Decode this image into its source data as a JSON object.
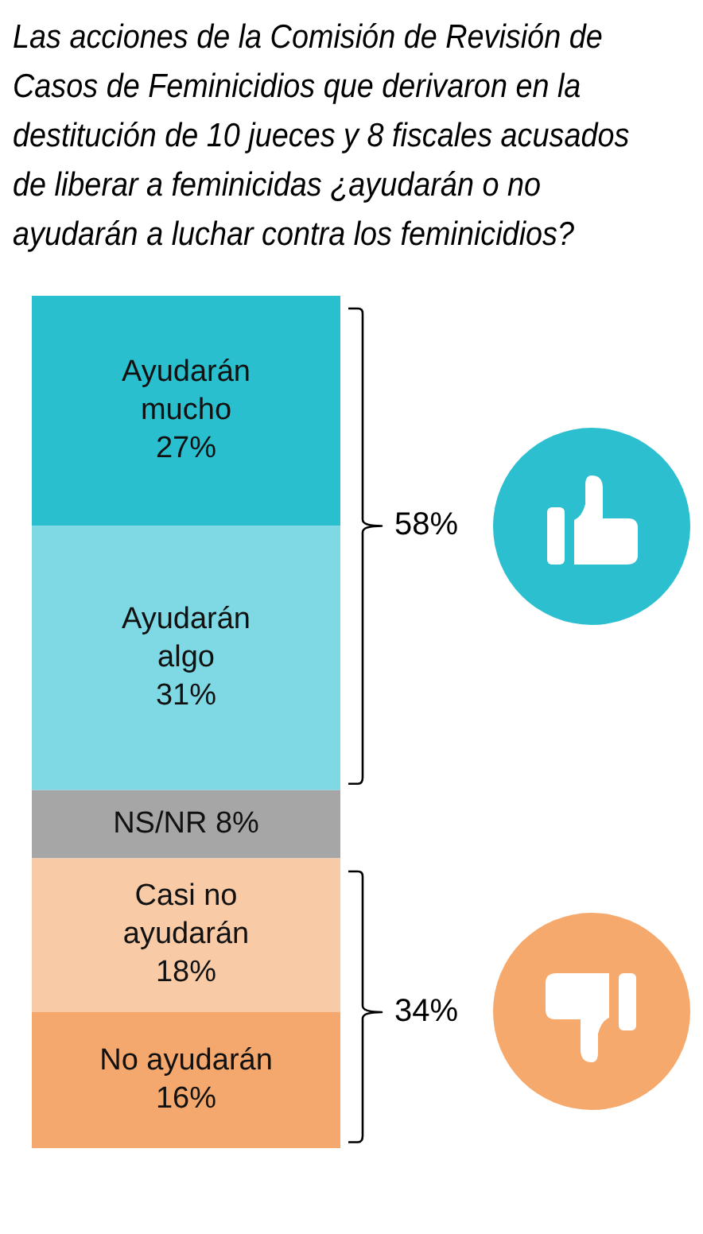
{
  "chart_data": {
    "type": "bar",
    "title": "Las acciones de la Comisión de Revisión de Casos de Feminicidios que derivaron en la destitución de 10 jueces y 8 fiscales acusados de liberar a feminicidas ¿ayudarán o no ayudarán a luchar contra los feminicidios?",
    "categories": [
      null
    ],
    "stacked": true,
    "series": [
      {
        "name": "No ayudarán",
        "color": "#f5a86d",
        "values": [
          16
        ],
        "value_labels": [
          "16%"
        ]
      },
      {
        "name": "Casi no ayudarán",
        "color": "#f9caa6",
        "values": [
          18
        ],
        "value_labels": [
          "18%"
        ]
      },
      {
        "name": "NS/NR",
        "color": "#a6a6a6",
        "values": [
          8
        ],
        "value_labels": [
          "8%"
        ]
      },
      {
        "name": "Ayudarán algo",
        "color": "#7ed9e4",
        "values": [
          31
        ],
        "value_labels": [
          "31%"
        ]
      },
      {
        "name": "Ayudarán mucho",
        "color": "#29bfcf",
        "values": [
          27
        ],
        "value_labels": [
          "27%"
        ]
      }
    ],
    "annotations": [
      "58%",
      "34%"
    ],
    "tick_labels": false,
    "legend": false
  }
}
